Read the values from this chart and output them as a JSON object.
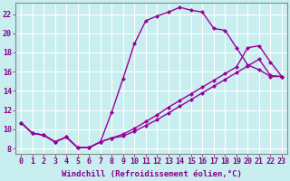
{
  "background_color": "#c8eef0",
  "grid_color": "#ffffff",
  "line_color": "#990099",
  "marker": "D",
  "markersize": 2.5,
  "linewidth": 1.0,
  "xlabel": "Windchill (Refroidissement éolien,°C)",
  "xlim": [
    -0.5,
    23.5
  ],
  "ylim": [
    7.5,
    23.2
  ],
  "xticks": [
    0,
    1,
    2,
    3,
    4,
    5,
    6,
    7,
    8,
    9,
    10,
    11,
    12,
    13,
    14,
    15,
    16,
    17,
    18,
    19,
    20,
    21,
    22,
    23
  ],
  "yticks": [
    8,
    10,
    12,
    14,
    16,
    18,
    20,
    22
  ],
  "line1": {
    "x": [
      0,
      1,
      2,
      3,
      4,
      5,
      6,
      7,
      8,
      9,
      10,
      11,
      12,
      13,
      14,
      15,
      16,
      17,
      18,
      19,
      20,
      21,
      22,
      23
    ],
    "y": [
      10.7,
      9.6,
      9.4,
      8.7,
      9.2,
      8.1,
      8.1,
      8.7,
      11.8,
      15.3,
      18.9,
      21.3,
      21.8,
      22.2,
      22.7,
      22.4,
      22.2,
      20.5,
      20.3,
      18.5,
      16.7,
      16.2,
      15.5,
      15.5
    ]
  },
  "line2": {
    "x": [
      0,
      1,
      2,
      3,
      4,
      5,
      6,
      7,
      8,
      9,
      10,
      11,
      12,
      13,
      14,
      15,
      16,
      17,
      18,
      19,
      20,
      21,
      22,
      23
    ],
    "y": [
      10.7,
      9.6,
      9.4,
      8.7,
      9.2,
      8.1,
      8.1,
      8.7,
      9.1,
      9.5,
      10.1,
      10.8,
      11.5,
      12.3,
      13.0,
      13.7,
      14.4,
      15.1,
      15.8,
      16.5,
      18.5,
      18.7,
      17.0,
      15.5
    ]
  },
  "line3": {
    "x": [
      0,
      1,
      2,
      3,
      4,
      5,
      6,
      7,
      8,
      9,
      10,
      11,
      12,
      13,
      14,
      15,
      16,
      17,
      18,
      19,
      20,
      21,
      22,
      23
    ],
    "y": [
      10.7,
      9.6,
      9.4,
      8.7,
      9.2,
      8.1,
      8.1,
      8.7,
      9.1,
      9.3,
      9.8,
      10.4,
      11.0,
      11.7,
      12.4,
      13.1,
      13.8,
      14.5,
      15.2,
      15.9,
      16.6,
      17.3,
      15.6,
      15.5
    ]
  },
  "xlabel_fontsize": 6.5,
  "tick_fontsize": 6.0,
  "tick_color": "#880088",
  "axis_color": "#888888"
}
